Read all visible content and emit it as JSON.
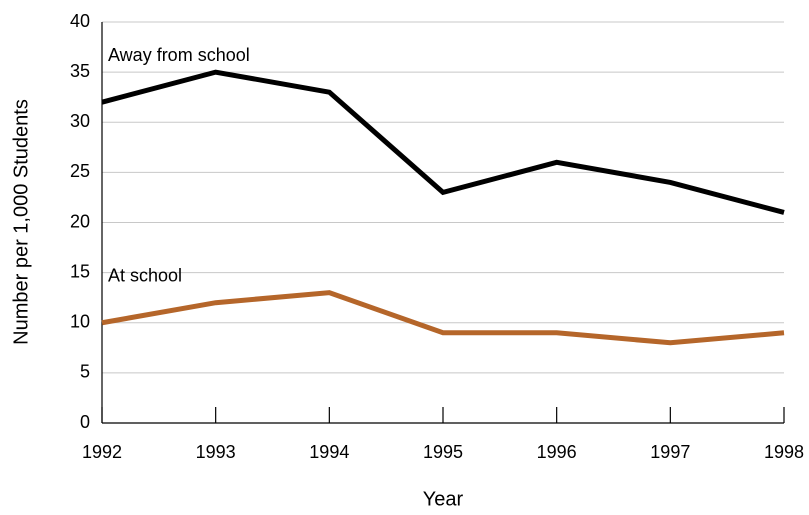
{
  "chart_data": {
    "type": "line",
    "x_label": "Year",
    "y_label": "Number per 1,000 Students",
    "x": [
      1992,
      1993,
      1994,
      1995,
      1996,
      1997,
      1998
    ],
    "series": [
      {
        "name": "Away from school",
        "color": "#000000",
        "values": [
          32,
          35,
          33,
          23,
          26,
          24,
          21
        ]
      },
      {
        "name": "At school",
        "color": "#b5662a",
        "values": [
          10,
          12,
          13,
          9,
          9,
          8,
          9
        ]
      }
    ],
    "xlim": [
      1992,
      1998
    ],
    "xticks": [
      1992,
      1993,
      1994,
      1995,
      1996,
      1997,
      1998
    ],
    "ylim": [
      0,
      40
    ],
    "yticks": [
      0,
      5,
      10,
      15,
      20,
      25,
      30,
      35,
      40
    ],
    "grid": true
  }
}
